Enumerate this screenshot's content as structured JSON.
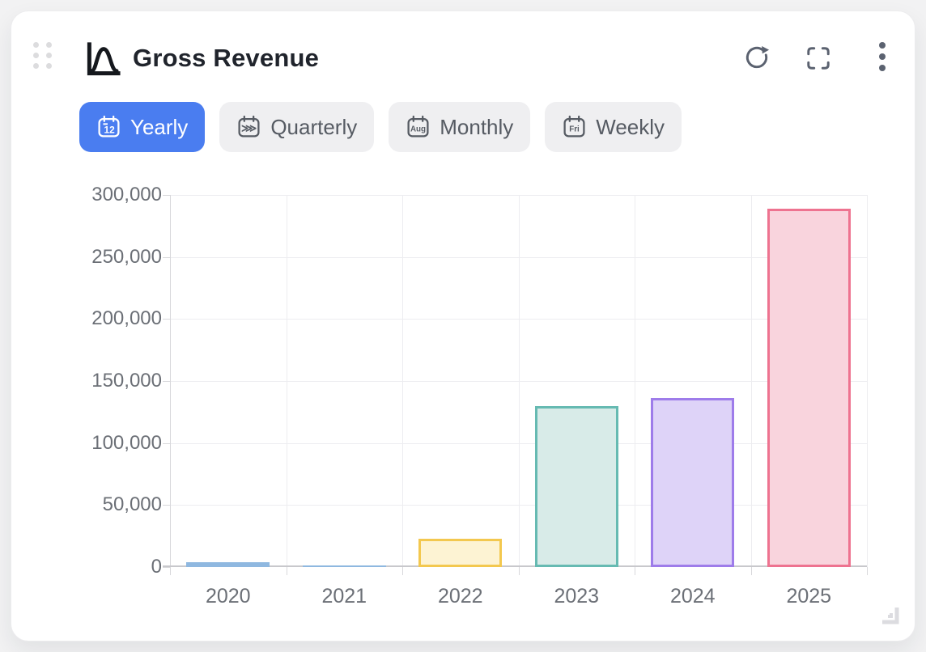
{
  "card": {
    "title": "Gross Revenue"
  },
  "toolbar": {
    "refresh_icon": "refresh",
    "fullscreen_icon": "fullscreen",
    "menu_icon": "kebab-menu"
  },
  "tabs": [
    {
      "label": "Yearly",
      "icon": "calendar-year-icon",
      "icon_text": "12",
      "active": true
    },
    {
      "label": "Quarterly",
      "icon": "calendar-quarter-icon",
      "icon_text": "⋙",
      "active": false
    },
    {
      "label": "Monthly",
      "icon": "calendar-month-icon",
      "icon_text": "Aug",
      "active": false
    },
    {
      "label": "Weekly",
      "icon": "calendar-week-icon",
      "icon_text": "Fri",
      "active": false
    }
  ],
  "colors": {
    "active_tab_bg": "#4a7df0",
    "active_tab_text": "#ffffff",
    "inactive_tab_bg": "#efeff1",
    "tab_text": "#565b63",
    "axis_text": "#6b6f76",
    "gridline": "#ededf0",
    "axis_line": "#c8c8cc"
  },
  "chart_data": {
    "type": "bar",
    "title": "Gross Revenue",
    "categories": [
      "2020",
      "2021",
      "2022",
      "2023",
      "2024",
      "2025"
    ],
    "values": [
      0,
      800,
      23000,
      130000,
      136000,
      289000
    ],
    "xlabel": "",
    "ylabel": "",
    "ylim": [
      0,
      300000
    ],
    "ytick_interval": 50000,
    "ytick_labels": [
      "0",
      "50,000",
      "100,000",
      "150,000",
      "200,000",
      "250,000",
      "300,000"
    ],
    "grid": true,
    "legend_position": "none",
    "bar_styles": [
      {
        "fill": "#dbe7f5",
        "border": "#8fb8e0"
      },
      {
        "fill": "#dbe7f5",
        "border": "#8fb8e0"
      },
      {
        "fill": "#fdf3d3",
        "border": "#f3c84f"
      },
      {
        "fill": "#d8ebe8",
        "border": "#66bab2"
      },
      {
        "fill": "#ded3f8",
        "border": "#9e7cea"
      },
      {
        "fill": "#f9d4dd",
        "border": "#ee7390"
      }
    ]
  }
}
